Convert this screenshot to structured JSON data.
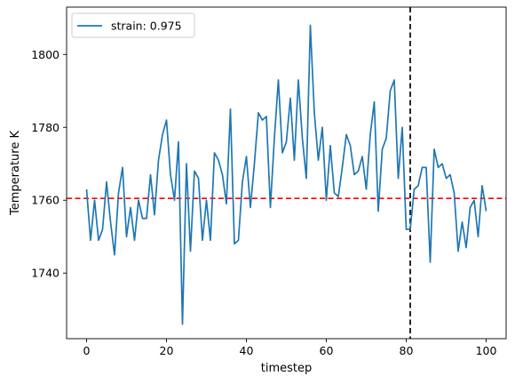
{
  "chart_data": {
    "type": "line",
    "title": "",
    "xlabel": "timestep",
    "ylabel": "Temperature K",
    "xlim": [
      -5,
      105
    ],
    "ylim": [
      1722,
      1813
    ],
    "xticks": [
      0,
      20,
      40,
      60,
      80,
      100
    ],
    "yticks": [
      1740,
      1760,
      1780,
      1800
    ],
    "grid": false,
    "legend": {
      "position": "top-left",
      "entries": [
        "strain: 0.975"
      ]
    },
    "colors": {
      "series": "#1f77b4",
      "mean_line": "#ff0000",
      "marker_line": "#000000"
    },
    "reference_lines": [
      {
        "orientation": "horizontal",
        "value": 1760.5,
        "style": "dashed",
        "color": "#ff0000"
      },
      {
        "orientation": "vertical",
        "value": 81,
        "style": "dashed",
        "color": "#000000"
      }
    ],
    "series": [
      {
        "name": "strain: 0.975",
        "x": [
          0,
          1,
          2,
          3,
          4,
          5,
          6,
          7,
          8,
          9,
          10,
          11,
          12,
          13,
          14,
          15,
          16,
          17,
          18,
          19,
          20,
          21,
          22,
          23,
          24,
          25,
          26,
          27,
          28,
          29,
          30,
          31,
          32,
          33,
          34,
          35,
          36,
          37,
          38,
          39,
          40,
          41,
          42,
          43,
          44,
          45,
          46,
          47,
          48,
          49,
          50,
          51,
          52,
          53,
          54,
          55,
          56,
          57,
          58,
          59,
          60,
          61,
          62,
          63,
          64,
          65,
          66,
          67,
          68,
          69,
          70,
          71,
          72,
          73,
          74,
          75,
          76,
          77,
          78,
          79,
          80,
          81,
          82,
          83,
          84,
          85,
          86,
          87,
          88,
          89,
          90,
          91,
          92,
          93,
          94,
          95,
          96,
          97,
          98,
          99,
          100
        ],
        "values": [
          1763,
          1749,
          1760,
          1749,
          1752,
          1765,
          1754,
          1745,
          1762,
          1769,
          1750,
          1758,
          1749,
          1760,
          1755,
          1755,
          1767,
          1756,
          1771,
          1778,
          1782,
          1767,
          1760,
          1776,
          1726,
          1770,
          1746,
          1768,
          1766,
          1749,
          1760,
          1749,
          1773,
          1771,
          1767,
          1759,
          1785,
          1748,
          1749,
          1765,
          1772,
          1758,
          1770,
          1784,
          1782,
          1783,
          1758,
          1777,
          1793,
          1773,
          1776,
          1788,
          1771,
          1793,
          1777,
          1766,
          1808,
          1784,
          1771,
          1780,
          1760,
          1775,
          1762,
          1761,
          1769,
          1778,
          1775,
          1767,
          1768,
          1772,
          1763,
          1778,
          1787,
          1757,
          1774,
          1777,
          1790,
          1793,
          1766,
          1780,
          1752,
          1752,
          1763,
          1764,
          1769,
          1769,
          1743,
          1774,
          1769,
          1770,
          1766,
          1767,
          1762,
          1746,
          1754,
          1747,
          1758,
          1760,
          1750,
          1764,
          1757
        ]
      }
    ]
  }
}
